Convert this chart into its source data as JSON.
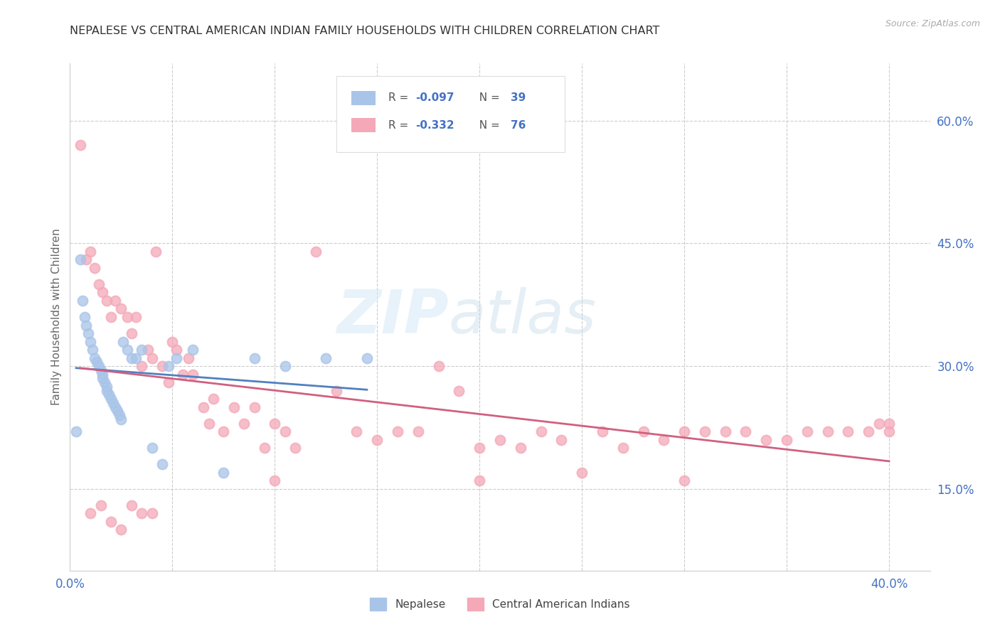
{
  "title": "NEPALESE VS CENTRAL AMERICAN INDIAN FAMILY HOUSEHOLDS WITH CHILDREN CORRELATION CHART",
  "source": "Source: ZipAtlas.com",
  "ylabel": "Family Households with Children",
  "xlim": [
    0.0,
    0.42
  ],
  "ylim": [
    0.05,
    0.67
  ],
  "x_ticks": [
    0.0,
    0.05,
    0.1,
    0.15,
    0.2,
    0.25,
    0.3,
    0.35,
    0.4
  ],
  "x_tick_labels": [
    "0.0%",
    "",
    "",
    "",
    "",
    "",
    "",
    "",
    "40.0%"
  ],
  "y_ticks_right": [
    0.15,
    0.3,
    0.45,
    0.6
  ],
  "y_tick_labels_right": [
    "15.0%",
    "30.0%",
    "45.0%",
    "60.0%"
  ],
  "legend_r1": "-0.097",
  "legend_n1": "39",
  "legend_r2": "-0.332",
  "legend_n2": "76",
  "color_nepalese": "#a8c4e8",
  "color_central": "#f4a8b8",
  "color_blue_text": "#4472c4",
  "color_pink_text": "#d05070",
  "nepalese_x": [
    0.003,
    0.005,
    0.006,
    0.007,
    0.008,
    0.009,
    0.01,
    0.011,
    0.012,
    0.013,
    0.014,
    0.015,
    0.016,
    0.016,
    0.017,
    0.018,
    0.018,
    0.019,
    0.02,
    0.021,
    0.022,
    0.023,
    0.024,
    0.025,
    0.026,
    0.028,
    0.03,
    0.032,
    0.035,
    0.04,
    0.045,
    0.048,
    0.052,
    0.06,
    0.075,
    0.09,
    0.105,
    0.125,
    0.145
  ],
  "nepalese_y": [
    0.22,
    0.43,
    0.38,
    0.36,
    0.35,
    0.34,
    0.33,
    0.32,
    0.31,
    0.305,
    0.3,
    0.295,
    0.29,
    0.285,
    0.28,
    0.275,
    0.27,
    0.265,
    0.26,
    0.255,
    0.25,
    0.245,
    0.24,
    0.235,
    0.33,
    0.32,
    0.31,
    0.31,
    0.32,
    0.2,
    0.18,
    0.3,
    0.31,
    0.32,
    0.17,
    0.31,
    0.3,
    0.31,
    0.31
  ],
  "central_x": [
    0.005,
    0.008,
    0.01,
    0.012,
    0.014,
    0.016,
    0.018,
    0.02,
    0.022,
    0.025,
    0.028,
    0.03,
    0.032,
    0.035,
    0.038,
    0.04,
    0.042,
    0.045,
    0.048,
    0.05,
    0.052,
    0.055,
    0.058,
    0.06,
    0.065,
    0.068,
    0.07,
    0.075,
    0.08,
    0.085,
    0.09,
    0.095,
    0.1,
    0.105,
    0.11,
    0.12,
    0.13,
    0.14,
    0.15,
    0.16,
    0.17,
    0.18,
    0.19,
    0.2,
    0.21,
    0.22,
    0.23,
    0.24,
    0.25,
    0.26,
    0.27,
    0.28,
    0.29,
    0.3,
    0.31,
    0.32,
    0.33,
    0.34,
    0.35,
    0.36,
    0.37,
    0.38,
    0.39,
    0.395,
    0.4,
    0.4,
    0.01,
    0.015,
    0.02,
    0.025,
    0.03,
    0.035,
    0.04,
    0.1,
    0.2,
    0.3
  ],
  "central_y": [
    0.57,
    0.43,
    0.44,
    0.42,
    0.4,
    0.39,
    0.38,
    0.36,
    0.38,
    0.37,
    0.36,
    0.34,
    0.36,
    0.3,
    0.32,
    0.31,
    0.44,
    0.3,
    0.28,
    0.33,
    0.32,
    0.29,
    0.31,
    0.29,
    0.25,
    0.23,
    0.26,
    0.22,
    0.25,
    0.23,
    0.25,
    0.2,
    0.23,
    0.22,
    0.2,
    0.44,
    0.27,
    0.22,
    0.21,
    0.22,
    0.22,
    0.3,
    0.27,
    0.2,
    0.21,
    0.2,
    0.22,
    0.21,
    0.17,
    0.22,
    0.2,
    0.22,
    0.21,
    0.22,
    0.22,
    0.22,
    0.22,
    0.21,
    0.21,
    0.22,
    0.22,
    0.22,
    0.22,
    0.23,
    0.22,
    0.23,
    0.12,
    0.13,
    0.11,
    0.1,
    0.13,
    0.12,
    0.12,
    0.16,
    0.16,
    0.16
  ]
}
